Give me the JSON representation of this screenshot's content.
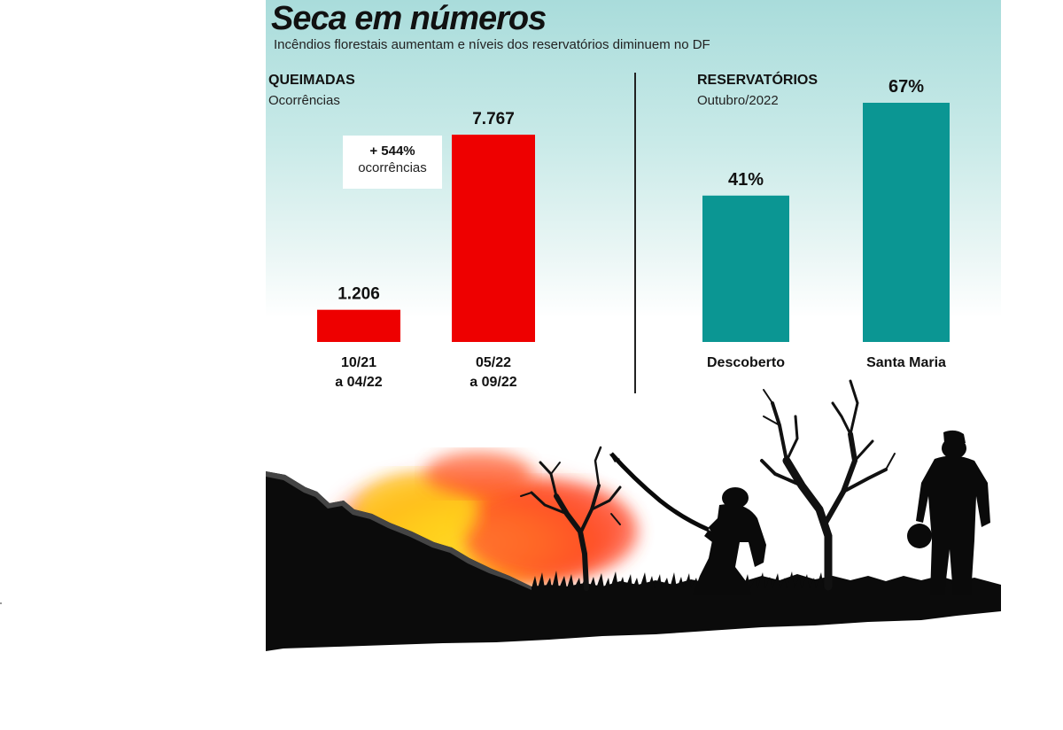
{
  "header": {
    "title": "Seca em números",
    "subtitle": "Incêndios florestais aumentam e níveis dos reservatórios diminuem no DF"
  },
  "queimadas": {
    "title": "QUEIMADAS",
    "subtitle": "Ocorrências",
    "annotation_value": "+ 544%",
    "annotation_text": "ocorrências"
  },
  "reservatorios": {
    "title": "RESERVATÓRIOS",
    "subtitle": "Outubro/2022"
  },
  "colors": {
    "queimadas_bar": "#ee0000",
    "reservatorios_bar": "#0b9693",
    "background_top": "#a9dcdb"
  },
  "illustration": {
    "description_icons": [
      "fire-icon",
      "hill-silhouette",
      "dead-tree-icon",
      "firefighter-with-hose-icon",
      "firefighter-walking-icon"
    ]
  },
  "chart_data": [
    {
      "type": "bar",
      "title": "QUEIMADAS",
      "subtitle": "Ocorrências",
      "categories": [
        [
          "10/21",
          "a 04/22"
        ],
        [
          "05/22",
          "a 09/22"
        ]
      ],
      "values": [
        1206,
        7767
      ],
      "value_labels": [
        "1.206",
        "7.767"
      ],
      "annotation": "+ 544% ocorrências"
    },
    {
      "type": "bar",
      "title": "RESERVATÓRIOS",
      "subtitle": "Outubro/2022",
      "categories": [
        "Descoberto",
        "Santa Maria"
      ],
      "values": [
        41,
        67
      ],
      "value_labels": [
        "41%",
        "67%"
      ]
    }
  ]
}
